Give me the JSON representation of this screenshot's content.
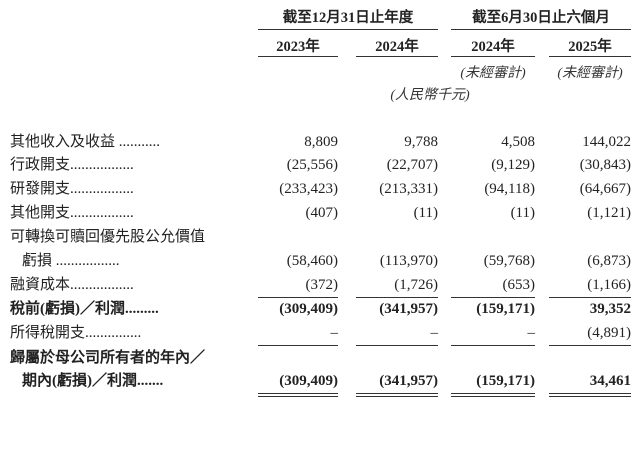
{
  "header": {
    "group_full_year": "截至12月31日止年度",
    "group_six_months": "截至6月30日止六個月",
    "years": [
      "2023年",
      "2024年",
      "2024年",
      "2025年"
    ],
    "unaudited": [
      "(未經審計)",
      "(未經審計)"
    ],
    "unit": "(人民幣千元)"
  },
  "rows": [
    {
      "label": "其他收入及收益 ...........",
      "values": [
        "8,809",
        "9,788",
        "4,508",
        "144,022"
      ],
      "bold": false
    },
    {
      "label": "行政開支.................",
      "values": [
        "(25,556)",
        "(22,707)",
        "(9,129)",
        "(30,843)"
      ],
      "bold": false
    },
    {
      "label": "研發開支.................",
      "values": [
        "(233,423)",
        "(213,331)",
        "(94,118)",
        "(64,667)"
      ],
      "bold": false
    },
    {
      "label": "其他開支.................",
      "values": [
        "(407)",
        "(11)",
        "(11)",
        "(1,121)"
      ],
      "bold": false
    },
    {
      "label": "可轉換可贖回優先股公允價值",
      "values": [
        "",
        "",
        "",
        ""
      ],
      "bold": false
    },
    {
      "label": "虧損 .................",
      "values": [
        "(58,460)",
        "(113,970)",
        "(59,768)",
        "(6,873)"
      ],
      "bold": false,
      "indent": true
    },
    {
      "label": "融資成本.................",
      "values": [
        "(372)",
        "(1,726)",
        "(653)",
        "(1,166)"
      ],
      "bold": false,
      "underline": "single"
    },
    {
      "label": "稅前(虧損)／利潤.........",
      "values": [
        "(309,409)",
        "(341,957)",
        "(159,171)",
        "39,352"
      ],
      "bold": true
    },
    {
      "label": "所得稅開支...............",
      "values": [
        "–",
        "–",
        "–",
        "(4,891)"
      ],
      "bold": false,
      "underline": "single"
    },
    {
      "label": "歸屬於母公司所有者的年內／",
      "values": [
        "",
        "",
        "",
        ""
      ],
      "bold": true
    },
    {
      "label": "期內(虧損)／利潤.......",
      "values": [
        "(309,409)",
        "(341,957)",
        "(159,171)",
        "34,461"
      ],
      "bold": true,
      "indent": true,
      "underline": "double"
    }
  ]
}
